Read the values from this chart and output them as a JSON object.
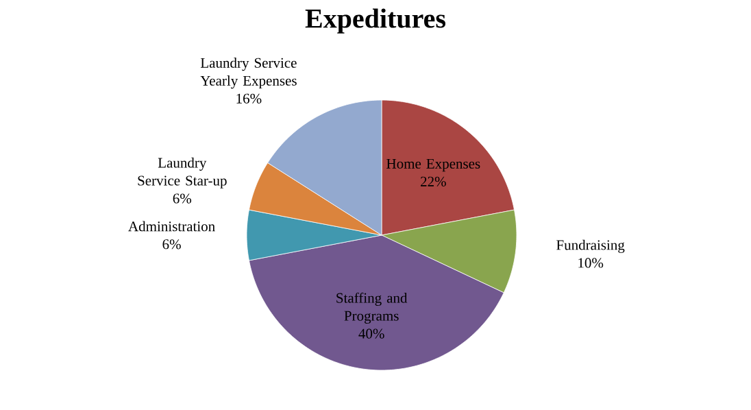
{
  "chart_data": {
    "type": "pie",
    "title": "Expeditures",
    "categories": [
      "Home Expenses",
      "Fundraising",
      "Staffing and Programs",
      "Administration",
      "Laundry Service Star-up",
      "Laundry Service Yearly Expenses"
    ],
    "values": [
      22,
      10,
      40,
      6,
      6,
      16
    ],
    "value_labels": [
      "22%",
      "10%",
      "40%",
      "6%",
      "6%",
      "16%"
    ],
    "colors": [
      "#aa4643",
      "#89a54e",
      "#71588f",
      "#4198af",
      "#db843d",
      "#93a9cf"
    ]
  }
}
